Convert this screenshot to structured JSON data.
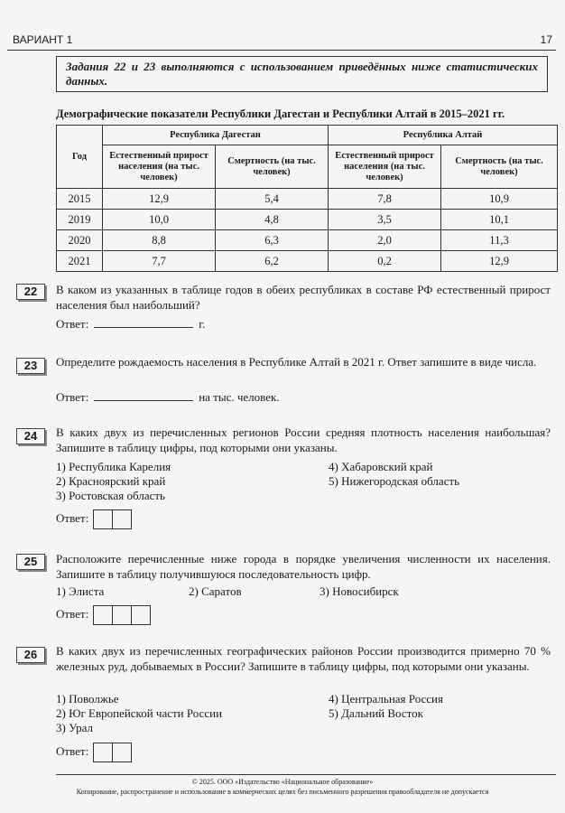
{
  "header": {
    "variant": "ВАРИАНТ 1",
    "page": "17"
  },
  "intro": "Задания 22 и 23 выполняются с использованием приведённых ниже статистических данных.",
  "table": {
    "title": "Демографические показатели Республики Дагестан и Республики Алтай в 2015–2021 гг.",
    "year_header": "Год",
    "group1": "Республика Дагестан",
    "group2": "Республика Алтай",
    "col_growth": "Естественный прирост населения (на тыс. человек)",
    "col_mortality": "Смертность (на тыс. человек)",
    "rows": [
      [
        "2015",
        "12,9",
        "5,4",
        "7,8",
        "10,9"
      ],
      [
        "2019",
        "10,0",
        "4,8",
        "3,5",
        "10,1"
      ],
      [
        "2020",
        "8,8",
        "6,3",
        "2,0",
        "11,3"
      ],
      [
        "2021",
        "7,7",
        "6,2",
        "0,2",
        "12,9"
      ]
    ]
  },
  "answer_label": "Ответ:",
  "q22": {
    "num": "22",
    "text": "В каком из указанных в таблице годов в обеих республиках в составе РФ естественный прирост населения был наибольший?",
    "unit": "г."
  },
  "q23": {
    "num": "23",
    "text": "Определите рождаемость населения в Республике Алтай в 2021 г. Ответ запишите в виде числа.",
    "unit": "на тыс. человек."
  },
  "q24": {
    "num": "24",
    "text": "В каких двух из перечисленных регионов России средняя плотность населения наибольшая? Запишите в таблицу цифры, под которыми они указаны.",
    "options": [
      "1) Республика Карелия",
      "2) Красноярский край",
      "3) Ростовская область",
      "4) Хабаровский край",
      "5) Нижегородская область"
    ]
  },
  "q25": {
    "num": "25",
    "text": "Расположите перечисленные ниже города в порядке увеличения численности их населения. Запишите в таблицу получившуюся последовательность цифр.",
    "options": [
      "1) Элиста",
      "2) Саратов",
      "3) Новосибирск"
    ]
  },
  "q26": {
    "num": "26",
    "text": "В каких двух из перечисленных географических районов России производится примерно 70 % железных руд, добываемых в России? Запишите в таблицу цифры, под которыми они указаны.",
    "options": [
      "1) Поволжье",
      "2) Юг Европейской части России",
      "3) Урал",
      "4) Центральная Россия",
      "5) Дальний Восток"
    ]
  },
  "footer": {
    "copyright": "© 2025. ООО «Издательство «Национальное образование»",
    "notice": "Копирование, распространение и использование в коммерческих целях без письменного разрешения правообладателя не допускается"
  }
}
